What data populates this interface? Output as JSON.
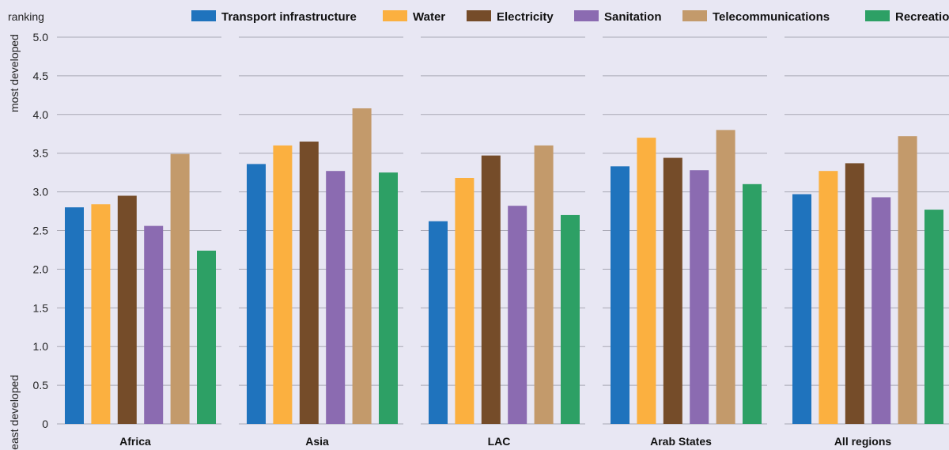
{
  "chart_data": {
    "type": "bar",
    "ylabel": "ranking",
    "y_top_note": "most developed",
    "y_bottom_note": "least developed",
    "ylim": [
      0,
      5
    ],
    "yticks": [
      "0",
      "0.5",
      "1.0",
      "1.5",
      "2.0",
      "2.5",
      "3.0",
      "3.5",
      "4.0",
      "4.5",
      "5.0"
    ],
    "grid": true,
    "legend_position": "top",
    "categories": [
      "Africa",
      "Asia",
      "LAC",
      "Arab States",
      "All regions"
    ],
    "series": [
      {
        "name": "Transport infrastructure",
        "color": "#1f73bd",
        "values": [
          2.8,
          3.36,
          2.62,
          3.33,
          2.97
        ]
      },
      {
        "name": "Water",
        "color": "#fbb040",
        "values": [
          2.84,
          3.6,
          3.18,
          3.7,
          3.27
        ]
      },
      {
        "name": "Electricity",
        "color": "#754c29",
        "values": [
          2.95,
          3.65,
          3.47,
          3.44,
          3.37
        ]
      },
      {
        "name": "Sanitation",
        "color": "#8b6bb1",
        "values": [
          2.56,
          3.27,
          2.82,
          3.28,
          2.93
        ]
      },
      {
        "name": "Telecommunications",
        "color": "#c39a6b",
        "values": [
          3.49,
          4.08,
          3.6,
          3.8,
          3.72
        ]
      },
      {
        "name": "Recreation",
        "color": "#2da065",
        "values": [
          2.24,
          3.25,
          2.7,
          3.1,
          2.77
        ]
      }
    ]
  }
}
